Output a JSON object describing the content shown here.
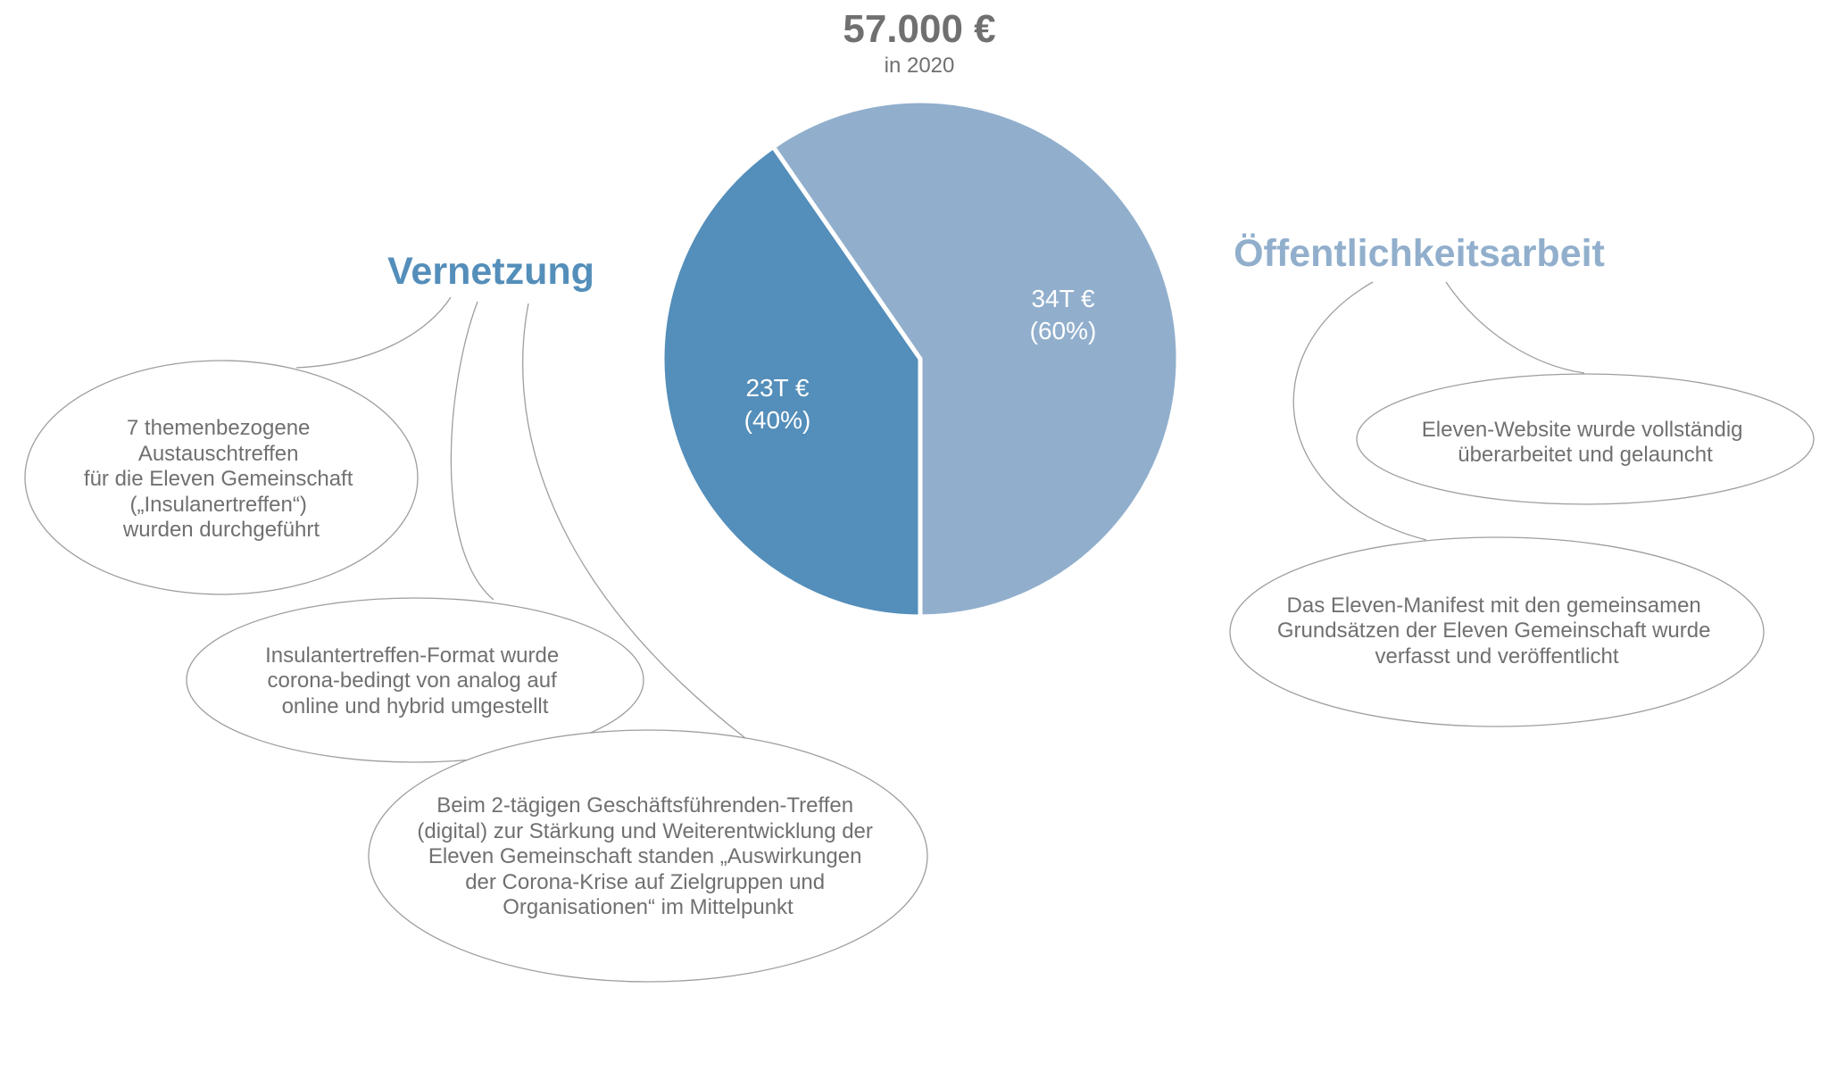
{
  "colors": {
    "primary": "#548eba",
    "secondary": "#91afcc",
    "text": "#707070",
    "line": "#9e9e9e"
  },
  "header": {
    "total": "57.000  €",
    "year": "in 2020"
  },
  "chart_data": {
    "type": "pie",
    "total": 57000,
    "currency": "€",
    "slices": [
      {
        "name": "Vernetzung",
        "value": 23000,
        "percent": 40,
        "label_value": "23T €",
        "label_percent": "(40%)",
        "color": "#548eba"
      },
      {
        "name": "Öffentlichkeitsarbeit",
        "value": 34000,
        "percent": 60,
        "label_value": "34T €",
        "label_percent": "(60%)",
        "color": "#91afcc"
      }
    ]
  },
  "left_group": {
    "heading": "Vernetzung",
    "bubbles": [
      {
        "lines": [
          "7 themenbezogene",
          "Austauschtreffen",
          "für die Eleven Gemeinschaft",
          "(„Insulanertreffen“)",
          "wurden durchgeführt"
        ]
      },
      {
        "lines": [
          "Insulantertreffen-Format wurde",
          "corona-bedingt von analog auf",
          "online und hybrid umgestellt"
        ]
      },
      {
        "lines": [
          "Beim 2-tägigen Geschäftsführenden-Treffen",
          "(digital) zur Stärkung und Weiterentwicklung der",
          "Eleven Gemeinschaft standen „Auswirkungen",
          "der Corona-Krise auf Zielgruppen und",
          "Organisationen“ im Mittelpunkt"
        ]
      }
    ]
  },
  "right_group": {
    "heading": "Öffentlichkeitsarbeit",
    "bubbles": [
      {
        "lines": [
          "Eleven-Website wurde vollständig",
          "überarbeitet und gelauncht"
        ]
      },
      {
        "lines": [
          "Das Eleven-Manifest mit den gemeinsamen",
          "Grundsätzen der Eleven Gemeinschaft wurde",
          "verfasst und veröffentlicht"
        ]
      }
    ]
  }
}
